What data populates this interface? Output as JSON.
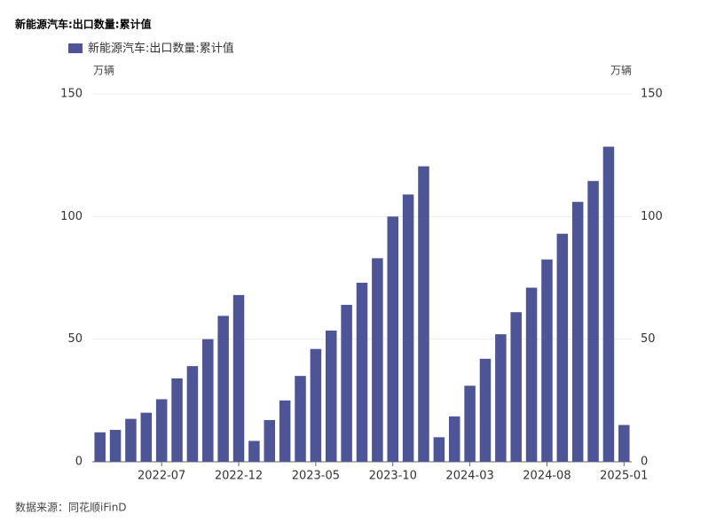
{
  "chart_data": {
    "type": "bar",
    "title": "新能源汽车:出口数量:累计值",
    "source": "数据来源：同花顺iFinD",
    "y_unit": "万辆",
    "y2_unit": "万辆",
    "categories": [
      null,
      null,
      null,
      null,
      "2022-07",
      null,
      null,
      null,
      null,
      "2022-12",
      null,
      null,
      null,
      null,
      "2023-05",
      null,
      null,
      null,
      null,
      "2023-10",
      null,
      null,
      null,
      null,
      "2024-03",
      null,
      null,
      null,
      null,
      "2024-08",
      null,
      null,
      null,
      null,
      "2025-01"
    ],
    "series": [
      {
        "name": "新能源汽车:出口数量:累计值",
        "color": "#4e5596",
        "values": [
          12,
          13,
          17.5,
          20,
          25.5,
          34,
          39,
          50,
          59.5,
          68,
          8.5,
          17,
          25,
          35,
          46,
          53.5,
          64,
          73,
          83,
          100,
          109,
          120.5,
          10,
          18.5,
          31,
          42,
          52,
          61,
          71,
          82.5,
          93,
          106,
          114.5,
          128.5,
          15
        ]
      }
    ],
    "ylim": [
      0,
      150
    ],
    "yticks": [
      0,
      50,
      100,
      150
    ],
    "y2lim": [
      0,
      150
    ],
    "y2ticks": [
      0,
      50,
      100,
      150
    ],
    "grid": true
  }
}
